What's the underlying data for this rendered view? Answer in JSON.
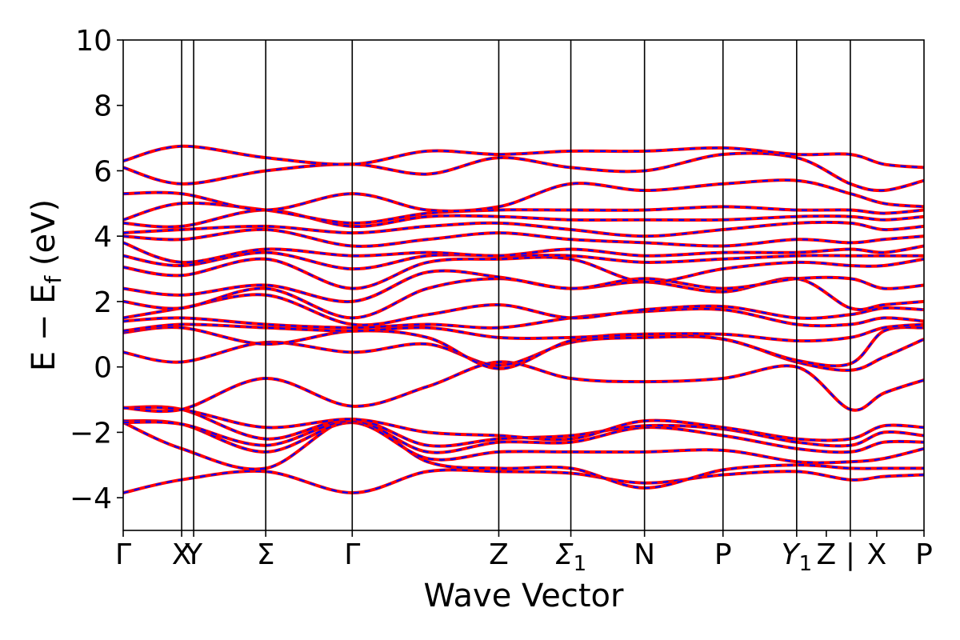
{
  "chart_data": {
    "type": "line",
    "title": "",
    "xlabel": "Wave Vector",
    "ylabel_parts": {
      "main": "E − E",
      "subscript": "f",
      "unit": " (eV)"
    },
    "ylim": [
      -5,
      10
    ],
    "yticks": [
      {
        "value": -4,
        "label": "−4"
      },
      {
        "value": -2,
        "label": "−2"
      },
      {
        "value": 0,
        "label": "0"
      },
      {
        "value": 2,
        "label": "2"
      },
      {
        "value": 4,
        "label": "4"
      },
      {
        "value": 6,
        "label": "6"
      },
      {
        "value": 8,
        "label": "8"
      },
      {
        "value": 10,
        "label": "10"
      }
    ],
    "xrange": [
      0,
      10
    ],
    "kpoints": [
      {
        "x": 0.0,
        "label": "Γ",
        "sub": ""
      },
      {
        "x": 0.73,
        "label": "X",
        "sub": ""
      },
      {
        "x": 0.88,
        "label": "Y",
        "sub": ""
      },
      {
        "x": 1.78,
        "label": "Σ",
        "sub": ""
      },
      {
        "x": 2.86,
        "label": "Γ",
        "sub": ""
      },
      {
        "x": 4.69,
        "label": "Z",
        "sub": ""
      },
      {
        "x": 5.59,
        "label": "Σ",
        "sub": "1"
      },
      {
        "x": 6.51,
        "label": "N",
        "sub": ""
      },
      {
        "x": 7.49,
        "label": "P",
        "sub": ""
      },
      {
        "x": 8.41,
        "label": "Y",
        "sub": "1"
      },
      {
        "x": 8.78,
        "label": "Z",
        "sub": ""
      },
      {
        "x": 9.08,
        "label": "|",
        "sub": ""
      },
      {
        "x": 9.41,
        "label": "X",
        "sub": ""
      },
      {
        "x": 10.0,
        "label": "P",
        "sub": ""
      }
    ],
    "kpoint_lines": [
      0.73,
      0.88,
      1.78,
      2.86,
      4.69,
      5.59,
      6.51,
      7.49,
      8.41,
      9.08
    ],
    "grid": false,
    "legend": "none",
    "style": {
      "series_a_color": "#ff0000",
      "series_b_color": "#0000ff",
      "series_b_dash": "dashed"
    },
    "bands": [
      {
        "x": [
          0,
          0.73,
          1.78,
          2.86,
          3.8,
          4.69,
          5.59,
          6.51,
          7.49,
          8.41,
          9.08,
          9.5,
          10
        ],
        "y": [
          -3.85,
          -3.45,
          -3.2,
          -3.85,
          -3.2,
          -3.2,
          -3.25,
          -3.55,
          -3.3,
          -3.2,
          -3.45,
          -3.35,
          -3.3
        ]
      },
      {
        "x": [
          0,
          0.73,
          1.78,
          2.86,
          3.8,
          4.69,
          5.59,
          6.51,
          7.49,
          8.41,
          9.08,
          9.5,
          10
        ],
        "y": [
          -1.7,
          -2.5,
          -3.1,
          -1.6,
          -2.9,
          -3.1,
          -3.1,
          -3.7,
          -3.15,
          -3.0,
          -3.1,
          -3.1,
          -3.1
        ]
      },
      {
        "x": [
          0,
          0.73,
          1.78,
          2.86,
          3.8,
          4.69,
          5.59,
          6.51,
          7.49,
          8.41,
          9.08,
          9.5,
          10
        ],
        "y": [
          -1.65,
          -1.75,
          -2.6,
          -1.7,
          -2.8,
          -2.6,
          -2.6,
          -2.6,
          -2.55,
          -2.9,
          -2.9,
          -2.8,
          -2.5
        ]
      },
      {
        "x": [
          0,
          0.73,
          1.78,
          2.86,
          3.8,
          4.69,
          5.59,
          6.51,
          7.49,
          8.41,
          9.08,
          9.5,
          10
        ],
        "y": [
          -1.7,
          -1.75,
          -2.4,
          -1.65,
          -2.6,
          -2.3,
          -2.3,
          -1.85,
          -2.1,
          -2.5,
          -2.6,
          -2.3,
          -2.3
        ]
      },
      {
        "x": [
          0,
          0.73,
          1.78,
          2.86,
          3.8,
          4.69,
          5.59,
          6.51,
          7.49,
          8.41,
          9.08,
          9.5,
          10
        ],
        "y": [
          -1.25,
          -1.3,
          -2.2,
          -1.6,
          -2.4,
          -2.2,
          -2.1,
          -1.8,
          -1.9,
          -2.3,
          -2.4,
          -2.0,
          -2.1
        ]
      },
      {
        "x": [
          0,
          0.73,
          1.78,
          2.86,
          3.8,
          4.69,
          5.59,
          6.51,
          7.49,
          8.41,
          9.08,
          9.5,
          10
        ],
        "y": [
          -1.25,
          -1.3,
          -1.85,
          -1.6,
          -2.0,
          -2.1,
          -2.2,
          -1.65,
          -1.85,
          -2.2,
          -2.2,
          -1.8,
          -1.85
        ]
      },
      {
        "x": [
          0,
          0.73,
          1.78,
          2.86,
          3.8,
          4.69,
          5.59,
          6.51,
          7.49,
          8.41,
          9.08,
          9.5,
          10
        ],
        "y": [
          -1.25,
          -1.3,
          -0.35,
          -1.2,
          -0.6,
          0.15,
          -0.35,
          -0.45,
          -0.35,
          0.0,
          -1.3,
          -0.8,
          -0.4
        ]
      },
      {
        "x": [
          0,
          0.73,
          1.78,
          2.86,
          3.8,
          4.69,
          5.59,
          6.51,
          7.49,
          8.41,
          9.08,
          9.5,
          10
        ],
        "y": [
          0.45,
          0.15,
          0.75,
          0.45,
          0.7,
          0.05,
          0.75,
          0.9,
          0.85,
          0.15,
          -0.1,
          0.3,
          0.85
        ]
      },
      {
        "x": [
          0,
          0.73,
          1.78,
          2.86,
          3.8,
          4.69,
          5.59,
          6.51,
          7.49,
          8.41,
          9.08,
          9.5,
          10
        ],
        "y": [
          1.05,
          1.2,
          0.7,
          1.1,
          0.9,
          -0.05,
          0.8,
          1.0,
          0.85,
          0.2,
          0.1,
          1.1,
          1.2
        ]
      },
      {
        "x": [
          0,
          0.73,
          1.78,
          2.86,
          3.8,
          4.69,
          5.59,
          6.51,
          7.49,
          8.41,
          9.08,
          9.5,
          10
        ],
        "y": [
          1.1,
          1.3,
          1.2,
          1.1,
          1.2,
          0.9,
          0.9,
          1.0,
          1.0,
          0.8,
          0.9,
          1.2,
          1.3
        ]
      },
      {
        "x": [
          0,
          0.73,
          1.78,
          2.86,
          3.8,
          4.69,
          5.59,
          6.51,
          7.49,
          8.41,
          9.08,
          9.5,
          10
        ],
        "y": [
          1.4,
          1.5,
          1.3,
          1.2,
          1.3,
          1.2,
          1.5,
          1.7,
          1.75,
          1.3,
          1.3,
          1.5,
          1.4
        ]
      },
      {
        "x": [
          0,
          0.73,
          1.78,
          2.86,
          3.8,
          4.69,
          5.59,
          6.51,
          7.49,
          8.41,
          9.08,
          9.5,
          10
        ],
        "y": [
          1.5,
          1.8,
          2.2,
          1.3,
          1.6,
          1.9,
          1.5,
          1.75,
          1.85,
          1.5,
          1.6,
          1.8,
          1.75
        ]
      },
      {
        "x": [
          0,
          0.73,
          1.78,
          2.86,
          3.8,
          4.69,
          5.59,
          6.51,
          7.49,
          8.41,
          9.08,
          9.5,
          10
        ],
        "y": [
          2.0,
          1.8,
          2.4,
          1.5,
          2.4,
          2.7,
          2.4,
          2.6,
          2.3,
          2.7,
          1.8,
          1.9,
          2.0
        ]
      },
      {
        "x": [
          0,
          0.73,
          1.78,
          2.86,
          3.8,
          4.69,
          5.59,
          6.51,
          7.49,
          8.41,
          9.08,
          9.5,
          10
        ],
        "y": [
          2.4,
          2.2,
          2.5,
          2.0,
          2.9,
          2.75,
          2.4,
          2.7,
          2.4,
          2.7,
          2.7,
          2.4,
          2.5
        ]
      },
      {
        "x": [
          0,
          0.73,
          1.78,
          2.86,
          3.8,
          4.69,
          5.59,
          6.51,
          7.49,
          8.41,
          9.08,
          9.5,
          10
        ],
        "y": [
          3.05,
          2.8,
          3.3,
          2.4,
          3.2,
          3.3,
          3.3,
          2.6,
          3.0,
          3.2,
          3.1,
          3.1,
          3.3
        ]
      },
      {
        "x": [
          0,
          0.73,
          1.78,
          2.86,
          3.8,
          4.69,
          5.59,
          6.51,
          7.49,
          8.41,
          9.08,
          9.5,
          10
        ],
        "y": [
          3.4,
          3.1,
          3.5,
          3.0,
          3.4,
          3.4,
          3.4,
          3.2,
          3.3,
          3.4,
          3.4,
          3.4,
          3.4
        ]
      },
      {
        "x": [
          0,
          0.73,
          1.78,
          2.86,
          3.8,
          4.69,
          5.59,
          6.51,
          7.49,
          8.41,
          9.08,
          9.5,
          10
        ],
        "y": [
          3.8,
          3.2,
          3.6,
          3.4,
          3.5,
          3.4,
          3.6,
          3.4,
          3.5,
          3.5,
          3.6,
          3.5,
          3.7
        ]
      },
      {
        "x": [
          0,
          0.73,
          1.78,
          2.86,
          3.8,
          4.69,
          5.59,
          6.51,
          7.49,
          8.41,
          9.08,
          9.5,
          10
        ],
        "y": [
          4.0,
          3.9,
          4.2,
          3.7,
          3.9,
          4.1,
          3.9,
          3.8,
          3.7,
          3.9,
          3.8,
          3.9,
          4.0
        ]
      },
      {
        "x": [
          0,
          0.73,
          1.78,
          2.86,
          3.8,
          4.69,
          5.59,
          6.51,
          7.49,
          8.41,
          9.08,
          9.5,
          10
        ],
        "y": [
          4.1,
          4.2,
          4.3,
          4.1,
          4.3,
          4.4,
          4.2,
          4.0,
          4.2,
          4.4,
          4.4,
          4.2,
          4.3
        ]
      },
      {
        "x": [
          0,
          0.73,
          1.78,
          2.86,
          3.8,
          4.69,
          5.59,
          6.51,
          7.49,
          8.41,
          9.08,
          9.5,
          10
        ],
        "y": [
          4.4,
          4.3,
          4.8,
          4.3,
          4.6,
          4.6,
          4.5,
          4.5,
          4.5,
          4.6,
          4.6,
          4.5,
          4.6
        ]
      },
      {
        "x": [
          0,
          0.73,
          1.78,
          2.86,
          3.8,
          4.69,
          5.59,
          6.51,
          7.49,
          8.41,
          9.08,
          9.5,
          10
        ],
        "y": [
          4.5,
          5.0,
          4.8,
          4.4,
          4.7,
          4.8,
          4.8,
          4.8,
          4.9,
          4.8,
          4.8,
          4.7,
          4.8
        ]
      },
      {
        "x": [
          0,
          0.73,
          1.78,
          2.86,
          3.8,
          4.69,
          5.59,
          6.51,
          7.49,
          8.41,
          9.08,
          9.5,
          10
        ],
        "y": [
          5.3,
          5.3,
          4.8,
          5.3,
          4.8,
          4.9,
          5.6,
          5.4,
          5.6,
          5.7,
          5.3,
          5.0,
          4.9
        ]
      },
      {
        "x": [
          0,
          0.73,
          1.78,
          2.86,
          3.8,
          4.69,
          5.59,
          6.51,
          7.49,
          8.41,
          9.08,
          9.5,
          10
        ],
        "y": [
          6.1,
          5.6,
          6.0,
          6.2,
          5.9,
          6.4,
          6.1,
          6.0,
          6.5,
          6.4,
          5.6,
          5.4,
          5.7
        ]
      },
      {
        "x": [
          0,
          0.73,
          1.78,
          2.86,
          3.8,
          4.69,
          5.59,
          6.51,
          7.49,
          8.41,
          9.08,
          9.5,
          10
        ],
        "y": [
          6.3,
          6.75,
          6.4,
          6.2,
          6.6,
          6.5,
          6.6,
          6.6,
          6.7,
          6.5,
          6.5,
          6.2,
          6.1
        ]
      }
    ]
  }
}
